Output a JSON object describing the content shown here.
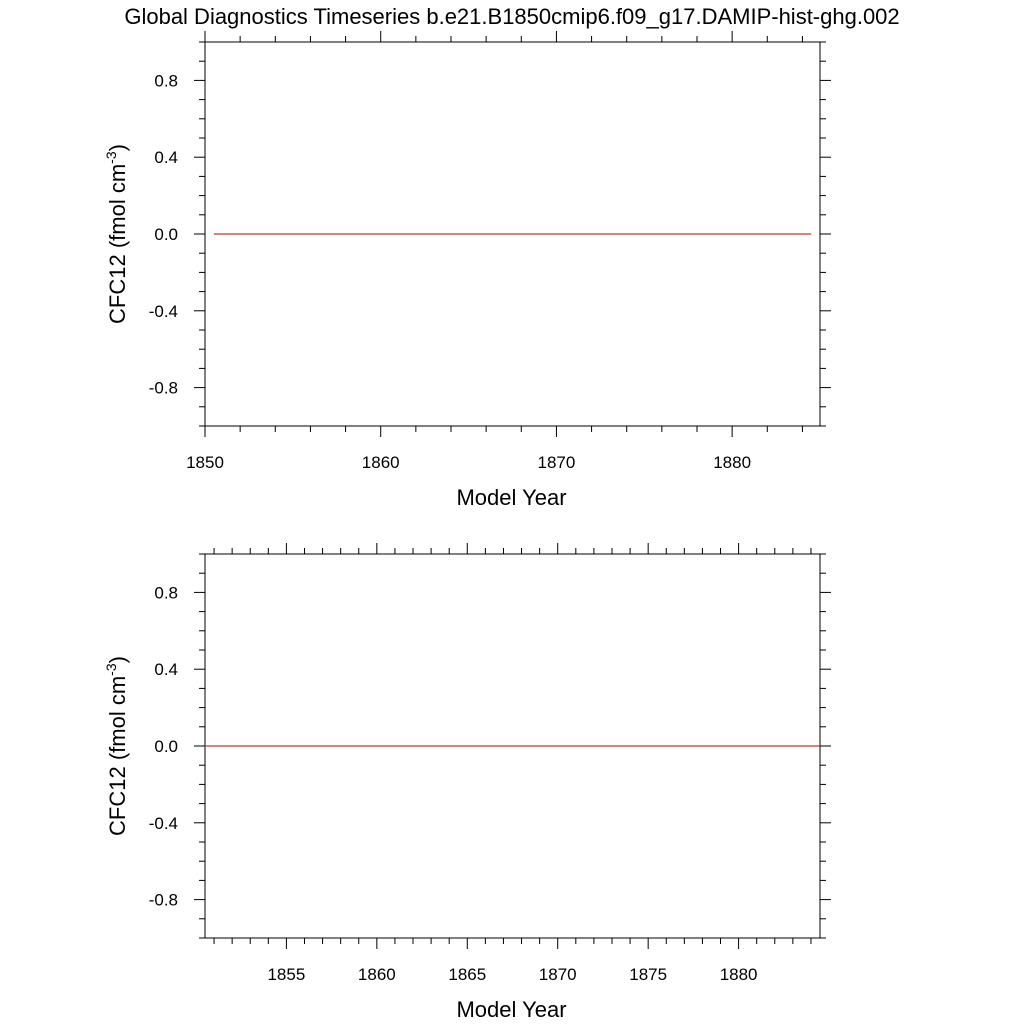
{
  "title": "Global Diagnostics Timeseries b.e21.B1850cmip6.f09_g17.DAMIP-hist-ghg.002",
  "chart_data": [
    {
      "type": "line",
      "xlabel": "Model Year",
      "ylabel": {
        "main": "CFC12 (fmol cm",
        "sup": "-3",
        "close": ")"
      },
      "xlim": [
        1850,
        1885
      ],
      "ylim": [
        -1.0,
        1.0
      ],
      "xticks_major": [
        1850,
        1860,
        1870,
        1880
      ],
      "xticks_minor": [
        1852,
        1854,
        1856,
        1858,
        1862,
        1864,
        1866,
        1868,
        1872,
        1874,
        1876,
        1878,
        1882,
        1884
      ],
      "xtick_labels": [
        "1850",
        "1860",
        "1870",
        "1880"
      ],
      "yticks_major": [
        -0.8,
        -0.4,
        0.0,
        0.4,
        0.8
      ],
      "ytick_labels": [
        "-0.8",
        "-0.4",
        "0.0",
        "0.4",
        "0.8"
      ],
      "yticks_minor": [
        -1.0,
        -0.9,
        -0.7,
        -0.6,
        -0.5,
        -0.3,
        -0.2,
        -0.1,
        0.1,
        0.2,
        0.3,
        0.5,
        0.6,
        0.7,
        0.9,
        1.0
      ],
      "grid": false,
      "series": [
        {
          "color": "#b5402a",
          "x": [
            1850.5,
            1884.5
          ],
          "y": [
            0.0,
            0.0
          ]
        }
      ]
    },
    {
      "type": "line",
      "xlabel": "Model Year",
      "ylabel": {
        "main": "CFC12 (fmol cm",
        "sup": "-3",
        "close": ")"
      },
      "xlim": [
        1850.5,
        1884.5
      ],
      "ylim": [
        -1.0,
        1.0
      ],
      "xticks_major": [
        1855,
        1860,
        1865,
        1870,
        1875,
        1880
      ],
      "xticks_minor": [
        1851,
        1852,
        1853,
        1854,
        1856,
        1857,
        1858,
        1859,
        1861,
        1862,
        1863,
        1864,
        1866,
        1867,
        1868,
        1869,
        1871,
        1872,
        1873,
        1874,
        1876,
        1877,
        1878,
        1879,
        1881,
        1882,
        1883,
        1884
      ],
      "xtick_labels": [
        "1855",
        "1860",
        "1865",
        "1870",
        "1875",
        "1880"
      ],
      "yticks_major": [
        -0.8,
        -0.4,
        0.0,
        0.4,
        0.8
      ],
      "ytick_labels": [
        "-0.8",
        "-0.4",
        "0.0",
        "0.4",
        "0.8"
      ],
      "yticks_minor": [
        -1.0,
        -0.9,
        -0.7,
        -0.6,
        -0.5,
        -0.3,
        -0.2,
        -0.1,
        0.1,
        0.2,
        0.3,
        0.5,
        0.6,
        0.7,
        0.9,
        1.0
      ],
      "grid": false,
      "series": [
        {
          "color": "#b5402a",
          "x": [
            1850.5,
            1884.5
          ],
          "y": [
            0.0,
            0.0
          ]
        }
      ]
    }
  ]
}
